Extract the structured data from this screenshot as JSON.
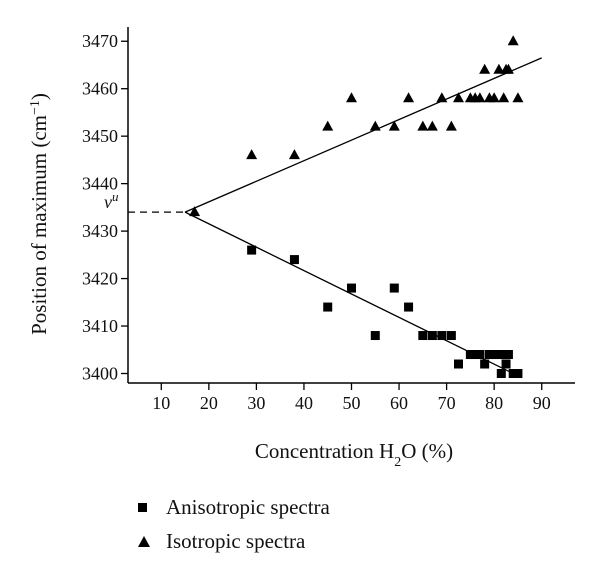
{
  "chart_data": {
    "type": "scatter",
    "xlabel": "Concentration H2O (%)",
    "ylabel": "Position of maximum (cm−1)",
    "xlim": [
      3,
      97
    ],
    "ylim": [
      3398,
      3473
    ],
    "x_ticks": [
      10,
      20,
      30,
      40,
      50,
      60,
      70,
      80,
      90
    ],
    "y_ticks": [
      3400,
      3410,
      3420,
      3430,
      3440,
      3450,
      3460,
      3470
    ],
    "annotation": "νu",
    "reference_value": 3434,
    "series": [
      {
        "name": "Anisotropic spectra",
        "marker": "square",
        "color": "#000000",
        "points": [
          [
            29,
            3426
          ],
          [
            38,
            3424
          ],
          [
            45,
            3414
          ],
          [
            50,
            3418
          ],
          [
            55,
            3408
          ],
          [
            59,
            3418
          ],
          [
            62,
            3414
          ],
          [
            65,
            3408
          ],
          [
            67,
            3408
          ],
          [
            69,
            3408
          ],
          [
            71,
            3408
          ],
          [
            72.5,
            3402
          ],
          [
            75,
            3404
          ],
          [
            76,
            3404
          ],
          [
            77,
            3404
          ],
          [
            78,
            3402
          ],
          [
            79,
            3404
          ],
          [
            80,
            3404
          ],
          [
            81,
            3404
          ],
          [
            81.5,
            3400
          ],
          [
            82,
            3404
          ],
          [
            82.5,
            3402
          ],
          [
            83,
            3404
          ],
          [
            84,
            3400
          ],
          [
            85,
            3400
          ]
        ],
        "fit": [
          [
            15,
            3434
          ],
          [
            84,
            3400
          ]
        ]
      },
      {
        "name": "Isotropic spectra",
        "marker": "triangle",
        "color": "#000000",
        "points": [
          [
            17,
            3434
          ],
          [
            29,
            3446
          ],
          [
            38,
            3446
          ],
          [
            45,
            3452
          ],
          [
            50,
            3458
          ],
          [
            55,
            3452
          ],
          [
            59,
            3452
          ],
          [
            62,
            3458
          ],
          [
            65,
            3452
          ],
          [
            67,
            3452
          ],
          [
            69,
            3458
          ],
          [
            71,
            3452
          ],
          [
            72.5,
            3458
          ],
          [
            75,
            3458
          ],
          [
            76,
            3458
          ],
          [
            77,
            3458
          ],
          [
            78,
            3464
          ],
          [
            79,
            3458
          ],
          [
            80,
            3458
          ],
          [
            81,
            3464
          ],
          [
            82,
            3458
          ],
          [
            82.5,
            3464
          ],
          [
            83,
            3464
          ],
          [
            84,
            3470
          ],
          [
            85,
            3458
          ]
        ],
        "fit": [
          [
            15,
            3434
          ],
          [
            90,
            3466.5
          ]
        ]
      }
    ]
  }
}
